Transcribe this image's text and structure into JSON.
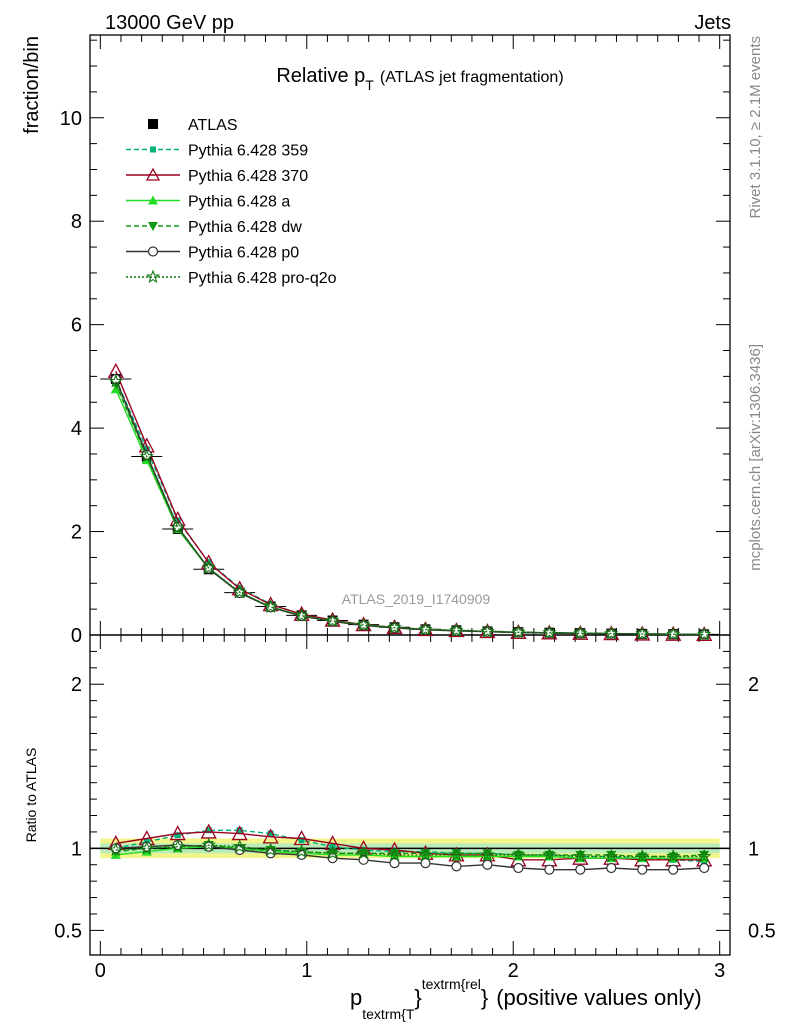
{
  "header": {
    "left": "13000 GeV pp",
    "right": "Jets"
  },
  "title": {
    "main": "Relative p",
    "sub": "T",
    "rest": "(ATLAS jet fragmentation)"
  },
  "ylabel_top": "fraction/bin",
  "ylabel_bottom": "Ratio to ATLAS",
  "watermark": "ATLAS_2019_I1740909",
  "side_texts": {
    "rivet": "Rivet 3.1.10, ≥ 2.1M events",
    "mcplots": "mcplots.cern.ch [arXiv:1306.3436]"
  },
  "xlabel": {
    "p": "p",
    "sub": "textrm{T",
    "sup": "textrm{rel",
    "brace1": "}",
    "brace2": "}",
    "rest": "(positive values only)"
  },
  "legend": [
    {
      "label": "ATLAS",
      "color": "#000000",
      "marker": "square-filled",
      "dash": "none"
    },
    {
      "label": "Pythia 6.428 359",
      "color": "#00b07a",
      "marker": "square-small",
      "dash": "dashed"
    },
    {
      "label": "Pythia 6.428 370",
      "color": "#9b0020",
      "marker": "triangle-open",
      "dash": "solid"
    },
    {
      "label": "Pythia 6.428 a",
      "color": "#22dd22",
      "marker": "triangle-filled",
      "dash": "solid"
    },
    {
      "label": "Pythia 6.428 dw",
      "color": "#119911",
      "marker": "triangle-down",
      "dash": "dashed"
    },
    {
      "label": "Pythia 6.428 p0",
      "color": "#333333",
      "marker": "circle-open",
      "dash": "solid"
    },
    {
      "label": "Pythia 6.428 pro-q2o",
      "color": "#117711",
      "marker": "star-open",
      "dash": "dotted"
    }
  ],
  "chart_data": {
    "type": "line",
    "x": [
      0.075,
      0.225,
      0.375,
      0.525,
      0.675,
      0.825,
      0.975,
      1.125,
      1.275,
      1.425,
      1.575,
      1.725,
      1.875,
      2.025,
      2.175,
      2.325,
      2.475,
      2.625,
      2.775,
      2.925
    ],
    "xlim": [
      -0.05,
      3.05
    ],
    "main": {
      "ylim": [
        0,
        11.6
      ],
      "yticks": [
        0,
        2,
        4,
        6,
        8,
        10
      ],
      "ytick_labels": [
        "0",
        "2",
        "4",
        "6",
        "8",
        "10"
      ]
    },
    "ratio": {
      "ylim": [
        0.35,
        2.3
      ],
      "yticks": [
        0.5,
        1,
        2
      ],
      "ytick_labels": [
        "0.5",
        "1",
        "2"
      ]
    },
    "xticks": [
      0,
      1,
      2,
      3
    ],
    "xtick_labels": [
      "0",
      "1",
      "2",
      "3"
    ],
    "reference": {
      "name": "ATLAS",
      "values": [
        4.95,
        3.45,
        2.05,
        1.27,
        0.82,
        0.55,
        0.38,
        0.28,
        0.2,
        0.15,
        0.11,
        0.09,
        0.07,
        0.055,
        0.045,
        0.036,
        0.028,
        0.022,
        0.017,
        0.013
      ],
      "band_inner": 0.03,
      "band_outer": 0.06
    },
    "series": [
      {
        "name": "Pythia 6.428 359",
        "ratio": [
          1.0,
          1.04,
          1.08,
          1.11,
          1.11,
          1.09,
          1.05,
          1.01,
          0.99,
          0.98,
          0.98,
          0.97,
          0.97,
          0.96,
          0.96,
          0.95,
          0.95,
          0.94,
          0.93,
          0.92
        ]
      },
      {
        "name": "Pythia 6.428 370",
        "ratio": [
          1.03,
          1.06,
          1.09,
          1.1,
          1.09,
          1.07,
          1.06,
          1.03,
          1.0,
          0.99,
          0.97,
          0.96,
          0.96,
          0.93,
          0.93,
          0.94,
          0.94,
          0.93,
          0.93,
          0.93
        ]
      },
      {
        "name": "Pythia 6.428 a",
        "ratio": [
          0.96,
          0.98,
          1.0,
          1.01,
          1.0,
          0.98,
          0.97,
          0.96,
          0.96,
          0.95,
          0.95,
          0.95,
          0.95,
          0.95,
          0.95,
          0.94,
          0.94,
          0.94,
          0.94,
          0.94
        ]
      },
      {
        "name": "Pythia 6.428 dw",
        "ratio": [
          0.98,
          1.0,
          1.01,
          1.02,
          1.0,
          0.99,
          0.98,
          0.97,
          0.97,
          0.97,
          0.97,
          0.97,
          0.97,
          0.96,
          0.96,
          0.96,
          0.96,
          0.95,
          0.95,
          0.96
        ]
      },
      {
        "name": "Pythia 6.428 p0",
        "ratio": [
          1.0,
          1.01,
          1.02,
          1.01,
          0.99,
          0.97,
          0.96,
          0.94,
          0.93,
          0.91,
          0.91,
          0.89,
          0.9,
          0.88,
          0.87,
          0.87,
          0.88,
          0.87,
          0.87,
          0.88
        ]
      },
      {
        "name": "Pythia 6.428 pro-q2o",
        "ratio": [
          0.99,
          1.0,
          1.01,
          1.02,
          1.01,
          0.99,
          0.98,
          0.97,
          0.97,
          0.96,
          0.96,
          0.96,
          0.96,
          0.96,
          0.96,
          0.95,
          0.95,
          0.95,
          0.95,
          0.95
        ]
      }
    ]
  }
}
